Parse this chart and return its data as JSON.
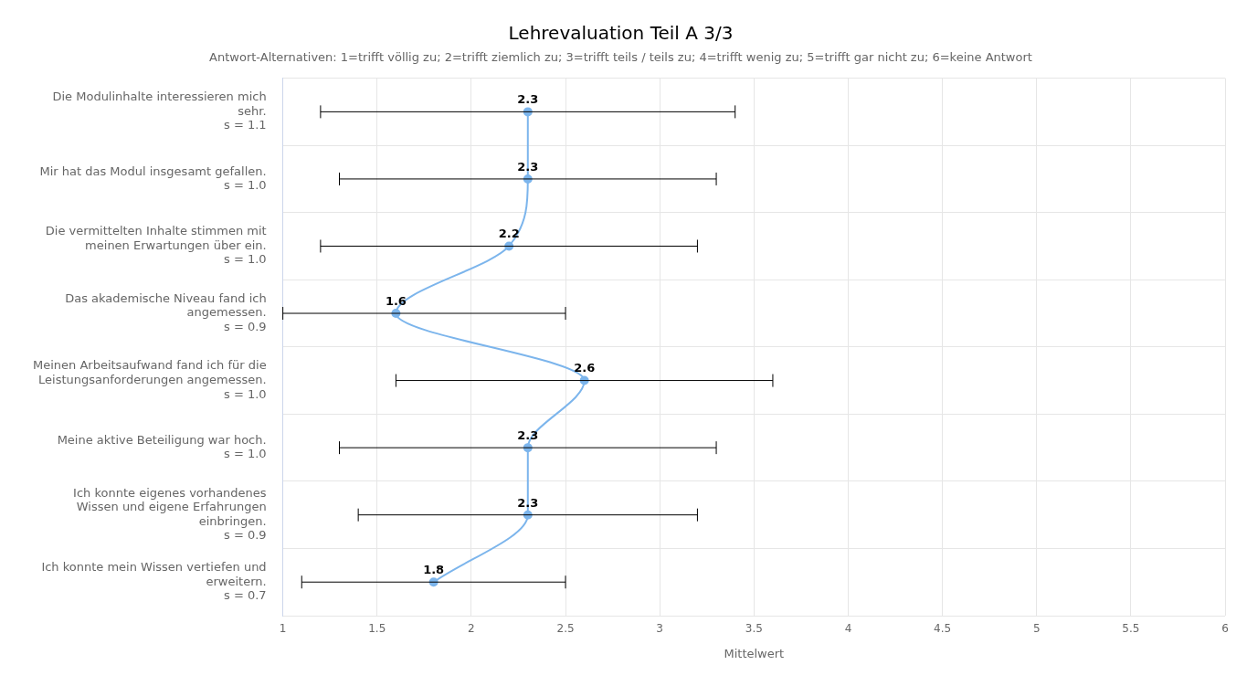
{
  "chart_data": {
    "type": "line",
    "orientation": "horizontal",
    "title": "Lehrevaluation Teil A 3/3",
    "subtitle": "Antwort-Alternativen: 1=trifft völlig zu; 2=trifft ziemlich zu; 3=trifft teils / teils zu; 4=trifft wenig zu; 5=trifft gar nicht zu; 6=keine Antwort",
    "xlabel": "Mittelwert",
    "categories": [
      "Die Modulinhalte interessieren mich\nsehr.\ns = 1.1",
      "Mir hat das Modul insgesamt gefallen.\ns = 1.0",
      "Die vermittelten Inhalte stimmen mit\nmeinen Erwartungen über ein.\ns = 1.0",
      "Das akademische Niveau fand ich\nangemessen.\ns = 0.9",
      "Meinen Arbeitsaufwand fand ich für die\nLeistungsanforderungen angemessen.\ns = 1.0",
      "Meine aktive Beteiligung war hoch.\ns = 1.0",
      "Ich konnte eigenes vorhandenes\nWissen und eigene Erfahrungen\neinbringen.\ns = 0.9",
      "Ich konnte mein Wissen vertiefen und\nerweitern.\ns = 0.7"
    ],
    "series": [
      {
        "color": "#7cb5ec",
        "values": [
          2.3,
          2.3,
          2.2,
          1.6,
          2.6,
          2.3,
          2.3,
          1.8
        ],
        "errors": [
          [
            1.2,
            3.4
          ],
          [
            1.3,
            3.3
          ],
          [
            1.2,
            3.2
          ],
          [
            1.0,
            2.5
          ],
          [
            1.6,
            3.6
          ],
          [
            1.3,
            3.3
          ],
          [
            1.4,
            3.2
          ],
          [
            1.1,
            2.5
          ]
        ]
      }
    ],
    "xlim": [
      1,
      6
    ],
    "xticks": [
      1,
      1.5,
      2,
      2.5,
      3,
      3.5,
      4,
      4.5,
      5,
      5.5,
      6
    ],
    "grid": true,
    "legend": false,
    "marker": "circle",
    "data_labels": true
  }
}
